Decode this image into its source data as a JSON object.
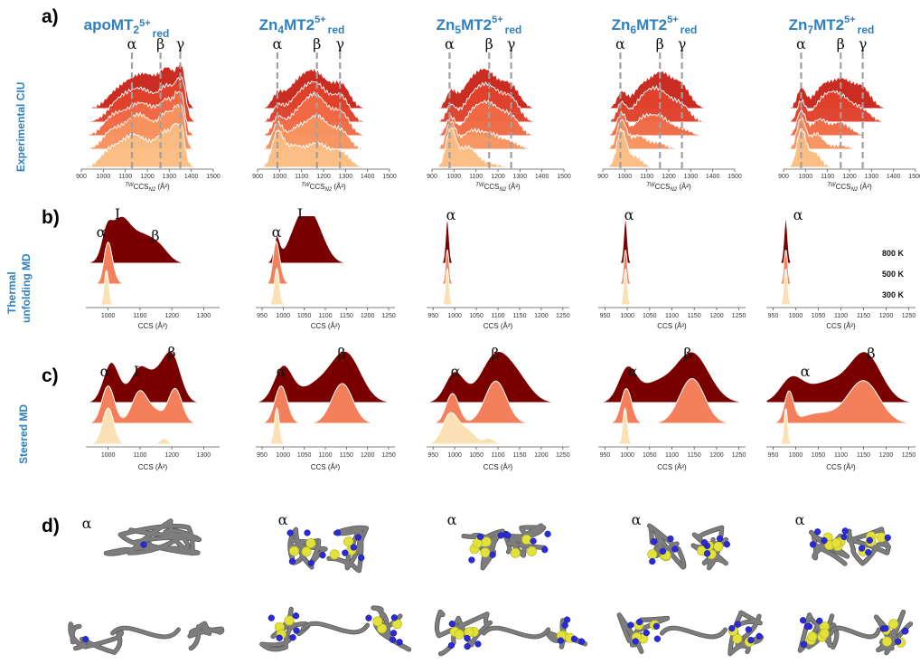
{
  "panel_letters": {
    "a": "a)",
    "b": "b)",
    "c": "c)",
    "d": "d)"
  },
  "columns": [
    {
      "base": "apoMT2",
      "sup": "5+",
      "sub": "red"
    },
    {
      "base": "Zn4MT2",
      "sup": "5+",
      "sub": "red"
    },
    {
      "base": "Zn5MT2",
      "sup": "5+",
      "sub": "red"
    },
    {
      "base": "Zn6MT2",
      "sup": "5+",
      "sub": "red"
    },
    {
      "base": "Zn7MT2",
      "sup": "5+",
      "sub": "red"
    }
  ],
  "row_labels": {
    "a": "Experimental CIU",
    "b_line1": "Thermal",
    "b_line2": "unfolding MD",
    "c": "Steered MD"
  },
  "axis_labels": {
    "a_prefix": "TW",
    "a_main": "CCS",
    "a_sub": "N2",
    "a_unit": " (Å²)",
    "bc": "CCS (Å²)"
  },
  "greek": {
    "alpha": "α",
    "beta": "β",
    "gamma": "γ",
    "inter": "I"
  },
  "temperatures": [
    "800 K",
    "500 K",
    "300 K"
  ],
  "colors": {
    "title_blue": "#2e7fbf",
    "cs1": [
      "#fbbd83",
      "#f8935e",
      "#f16a45",
      "#e0422c",
      "#c9261b"
    ],
    "cs3": [
      "#fbe0b3",
      "#f4805b",
      "#7a0000"
    ],
    "ribbon": "#7d7d7d",
    "zinc": "#e2e23a",
    "sulfur": "#2a2ad8"
  },
  "chart_data": [
    {
      "type": "area",
      "panel": "a",
      "xlabel": "TWCCSN2 (Å²)",
      "xlim": [
        900,
        1500
      ],
      "xticks": [
        900,
        1000,
        1100,
        1200,
        1300,
        1400,
        1500
      ],
      "markers": {
        "apoMT2": {
          "α": 1130,
          "β": 1260,
          "γ": 1350
        },
        "Zn4MT2": {
          "α": 990,
          "β": 1170,
          "γ": 1275
        },
        "Zn5MT2": {
          "α": 980,
          "β": 1160,
          "γ": 1260
        },
        "Zn6MT2": {
          "α": 980,
          "β": 1160,
          "γ": 1260
        },
        "Zn7MT2": {
          "α": 980,
          "β": 1160,
          "γ": 1260
        }
      }
    },
    {
      "type": "area",
      "panel": "b",
      "xlabel": "CCS (Å²)",
      "xticks": {
        "apoMT2": [
          1000,
          1100,
          1200,
          1300
        ],
        "Zn4MT2": [
          950,
          1000,
          1050,
          1100,
          1150,
          1200,
          1250
        ],
        "Zn5MT2": [
          950,
          1000,
          1050,
          1100,
          1150,
          1200,
          1250
        ],
        "Zn6MT2": [
          950,
          1000,
          1050,
          1100,
          1150,
          1200,
          1250
        ],
        "Zn7MT2": [
          950,
          1000,
          1050,
          1100,
          1150,
          1200,
          1250
        ]
      },
      "series": [
        {
          "name": "800 K"
        },
        {
          "name": "500 K"
        },
        {
          "name": "300 K"
        }
      ],
      "peak_labels": {
        "apoMT2": [
          "α",
          "I",
          "β"
        ],
        "Zn4MT2": [
          "α",
          "I"
        ],
        "Zn5MT2": [
          "α"
        ],
        "Zn6MT2": [
          "α"
        ],
        "Zn7MT2": [
          "α"
        ]
      }
    },
    {
      "type": "area",
      "panel": "c",
      "xlabel": "CCS (Å²)",
      "xticks": {
        "apoMT2": [
          1000,
          1100,
          1200,
          1300
        ],
        "Zn4MT2": [
          950,
          1000,
          1050,
          1100,
          1150,
          1200,
          1250
        ],
        "Zn5MT2": [
          950,
          1000,
          1050,
          1100,
          1150,
          1200,
          1250
        ],
        "Zn6MT2": [
          950,
          1000,
          1050,
          1100,
          1150,
          1200,
          1250
        ],
        "Zn7MT2": [
          950,
          1000,
          1050,
          1100,
          1150,
          1200,
          1250
        ]
      },
      "peak_labels": {
        "apoMT2": [
          "α",
          "I",
          "β"
        ],
        "Zn4MT2": [
          "α",
          "β"
        ],
        "Zn5MT2": [
          "α",
          "β"
        ],
        "Zn6MT2": [
          "α",
          "β"
        ],
        "Zn7MT2": [
          "α",
          "β"
        ]
      }
    }
  ]
}
